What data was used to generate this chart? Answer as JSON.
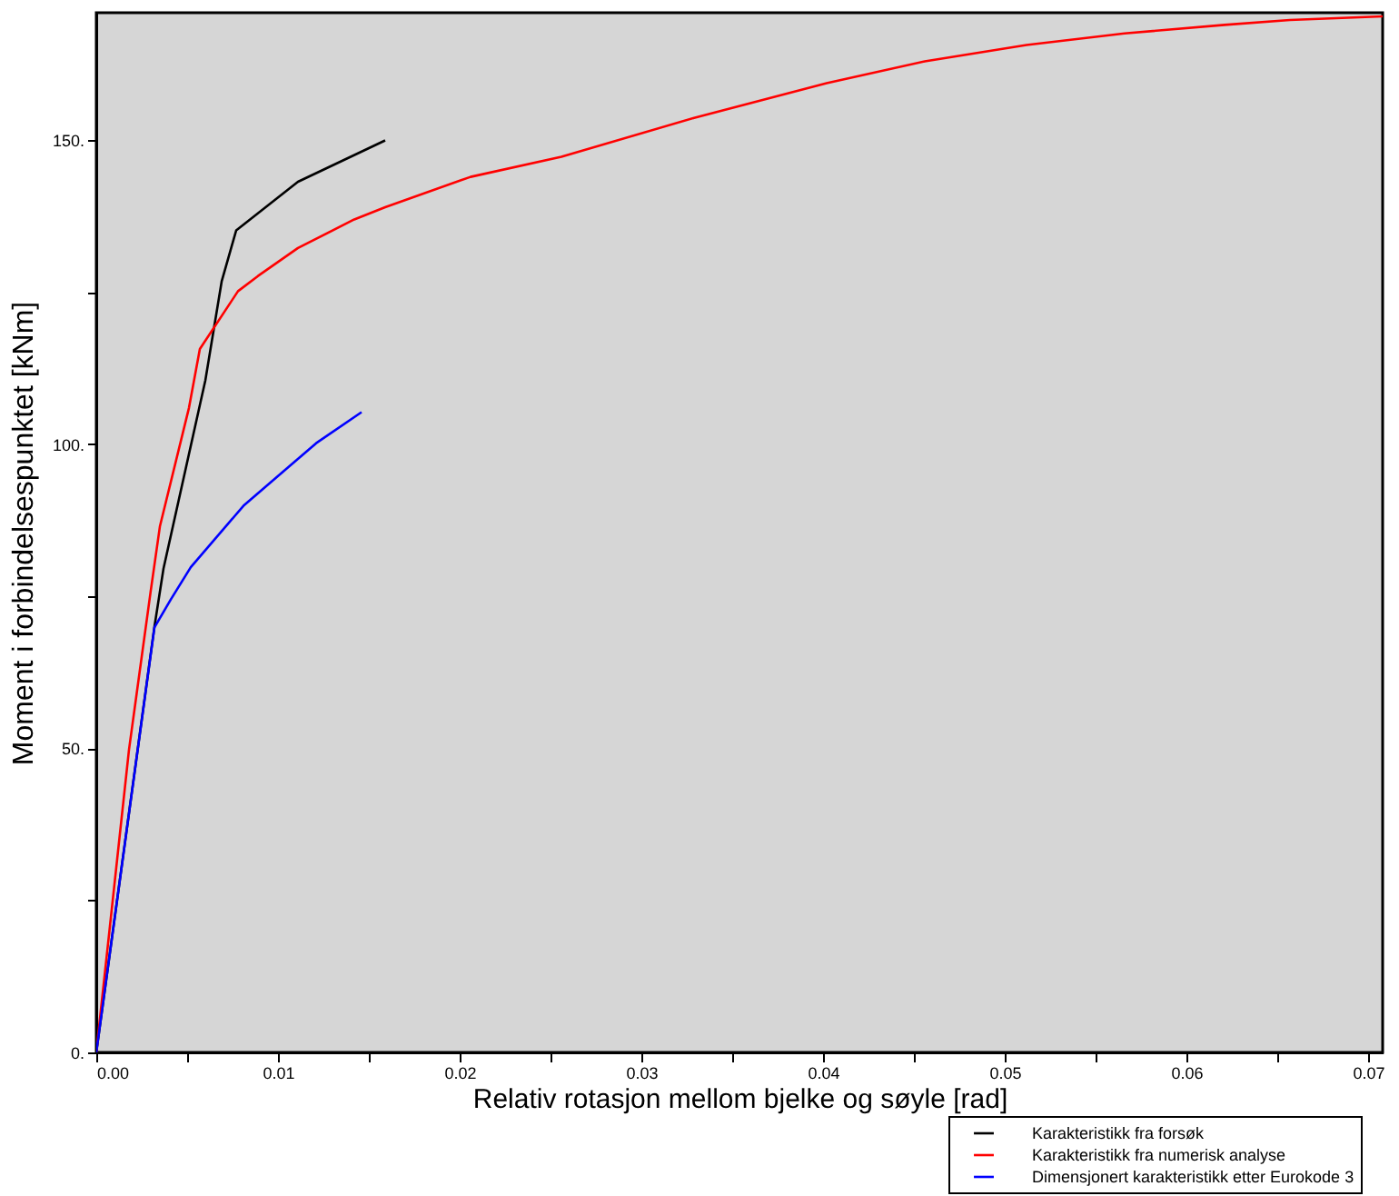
{
  "chart_data": {
    "type": "line",
    "xlabel": "Relativ rotasjon mellom bjelke og søyle [rad]",
    "ylabel": "Moment i forbindelsespunktet [kNm]",
    "xlim": [
      0,
      0.0708
    ],
    "ylim": [
      0,
      171
    ],
    "xticks": [
      {
        "value": 0,
        "label": "0.00"
      },
      {
        "value": 0.005,
        "label": null
      },
      {
        "value": 0.01,
        "label": "0.01"
      },
      {
        "value": 0.015,
        "label": null
      },
      {
        "value": 0.02,
        "label": "0.02"
      },
      {
        "value": 0.025,
        "label": null
      },
      {
        "value": 0.03,
        "label": "0.03"
      },
      {
        "value": 0.035,
        "label": null
      },
      {
        "value": 0.04,
        "label": "0.04"
      },
      {
        "value": 0.045,
        "label": null
      },
      {
        "value": 0.05,
        "label": "0.05"
      },
      {
        "value": 0.055,
        "label": null
      },
      {
        "value": 0.06,
        "label": "0.06"
      },
      {
        "value": 0.065,
        "label": null
      },
      {
        "value": 0.07,
        "label": "0.07"
      }
    ],
    "yticks": [
      {
        "value": 0,
        "label": "0."
      },
      {
        "value": 25,
        "label": null
      },
      {
        "value": 50,
        "label": "50."
      },
      {
        "value": 75,
        "label": null
      },
      {
        "value": 100,
        "label": "100."
      },
      {
        "value": 125,
        "label": null
      },
      {
        "value": 150,
        "label": "150."
      }
    ],
    "legend": "bottom right",
    "grid": false,
    "series": [
      {
        "name": "Karakteristikk fra forsøk",
        "color": "#000000",
        "x": [
          0,
          0.0032,
          0.0037,
          0.006,
          0.0069,
          0.0077,
          0.0111,
          0.0159
        ],
        "values": [
          0,
          70,
          79.6,
          110.5,
          126.8,
          135.2,
          143.2,
          150
        ]
      },
      {
        "name": "Karakteristikk fra numerisk analyse",
        "color": "#ff0000",
        "x": [
          0,
          0.0018,
          0.003,
          0.0035,
          0.0051,
          0.0057,
          0.0078,
          0.0089,
          0.0111,
          0.0142,
          0.0159,
          0.0206,
          0.0256,
          0.0329,
          0.0402,
          0.0456,
          0.0512,
          0.0566,
          0.0621,
          0.0657,
          0.0708
        ],
        "values": [
          0,
          49.8,
          76,
          86.5,
          106,
          115.7,
          125.2,
          127.7,
          132.3,
          137,
          139,
          144,
          147.3,
          153.7,
          159.4,
          163,
          165.7,
          167.6,
          169,
          169.8,
          170.4
        ]
      },
      {
        "name": "Dimensjonert karakteristikk etter Eurokode 3",
        "color": "#0000ff",
        "x": [
          0,
          0.0032,
          0.0041,
          0.0052,
          0.0081,
          0.0121,
          0.0146
        ],
        "values": [
          0,
          69.9,
          74.5,
          79.8,
          89.9,
          100.2,
          105.3
        ]
      }
    ]
  }
}
